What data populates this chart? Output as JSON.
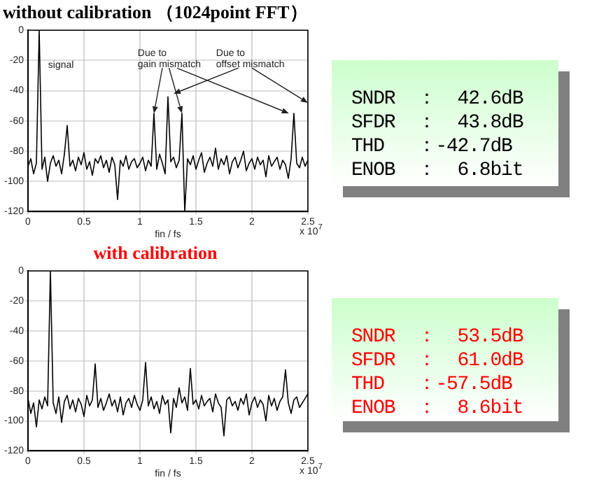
{
  "chart_data": [
    {
      "type": "line",
      "title": "without calibration （1024point FFT）",
      "xlabel": "fin / fs",
      "xlim": [
        0,
        2.5
      ],
      "xticks": [
        0,
        0.5,
        1,
        1.5,
        2,
        2.5
      ],
      "ylim": [
        -120,
        0
      ],
      "yticks": [
        -120,
        -100,
        -80,
        -60,
        -40,
        -20,
        0
      ],
      "grid": true,
      "x": [
        0,
        0.025,
        0.05,
        0.075,
        0.1,
        0.125,
        0.15,
        0.175,
        0.2,
        0.225,
        0.25,
        0.275,
        0.3,
        0.325,
        0.35,
        0.375,
        0.4,
        0.425,
        0.45,
        0.475,
        0.5,
        0.525,
        0.55,
        0.575,
        0.6,
        0.625,
        0.65,
        0.675,
        0.7,
        0.725,
        0.75,
        0.775,
        0.8,
        0.825,
        0.85,
        0.875,
        0.9,
        0.925,
        0.95,
        0.975,
        1,
        1.025,
        1.05,
        1.075,
        1.1,
        1.125,
        1.15,
        1.175,
        1.2,
        1.225,
        1.25,
        1.275,
        1.3,
        1.325,
        1.35,
        1.375,
        1.4,
        1.425,
        1.45,
        1.475,
        1.5,
        1.525,
        1.55,
        1.575,
        1.6,
        1.625,
        1.65,
        1.675,
        1.7,
        1.725,
        1.75,
        1.775,
        1.8,
        1.825,
        1.85,
        1.875,
        1.9,
        1.925,
        1.95,
        1.975,
        2,
        2.025,
        2.05,
        2.075,
        2.1,
        2.125,
        2.15,
        2.175,
        2.2,
        2.225,
        2.25,
        2.275,
        2.3,
        2.325,
        2.35,
        2.375,
        2.4,
        2.425,
        2.45,
        2.475,
        2.5
      ],
      "series": [
        {
          "color": "#000000",
          "values": [
            -90,
            -85,
            -95,
            -88,
            0,
            -92,
            -84,
            -100,
            -88,
            -83,
            -90,
            -86,
            -95,
            -82,
            -63,
            -90,
            -86,
            -93,
            -84,
            -89,
            -81,
            -92,
            -87,
            -96,
            -85,
            -88,
            -83,
            -91,
            -86,
            -94,
            -84,
            -89,
            -112,
            -86,
            -90,
            -83,
            -92,
            -87,
            -85,
            -91,
            -88,
            -84,
            -93,
            -86,
            -90,
            -55,
            -92,
            -82,
            -88,
            -95,
            -44,
            -87,
            -84,
            -91,
            -86,
            -55,
            -120,
            -85,
            -89,
            -83,
            -92,
            -86,
            -81,
            -94,
            -88,
            -84,
            -90,
            -78,
            -92,
            -85,
            -89,
            -83,
            -95,
            -87,
            -84,
            -91,
            -86,
            -80,
            -93,
            -88,
            -85,
            -92,
            -84,
            -89,
            -86,
            -97,
            -83,
            -90,
            -87,
            -84,
            -92,
            -86,
            -89,
            -98,
            -85,
            -55,
            -88,
            -91,
            -84,
            -90,
            -86
          ]
        }
      ],
      "annotations": [
        "signal",
        "Due to\ngain mismatch",
        "Due to\noffset mismatch",
        "x 10$^{7}$"
      ]
    },
    {
      "type": "other",
      "color": "#000000",
      "annotations": [
        "SNDR  ：  42.6dB",
        "SFDR  ：  43.8dB",
        "THD   ：-42.7dB",
        "ENOB  ：  6.8bit"
      ]
    },
    {
      "type": "line",
      "title": "with calibration",
      "xlabel": "fin / fs",
      "xlim": [
        0,
        2.5
      ],
      "xticks": [
        0,
        0.5,
        1,
        1.5,
        2,
        2.5
      ],
      "ylim": [
        -120,
        0
      ],
      "yticks": [
        -120,
        -100,
        -80,
        -60,
        -40,
        -20,
        0
      ],
      "grid": true,
      "x": [
        0,
        0.025,
        0.05,
        0.075,
        0.1,
        0.125,
        0.15,
        0.175,
        0.2,
        0.225,
        0.25,
        0.275,
        0.3,
        0.325,
        0.35,
        0.375,
        0.4,
        0.425,
        0.45,
        0.475,
        0.5,
        0.525,
        0.55,
        0.575,
        0.6,
        0.625,
        0.65,
        0.675,
        0.7,
        0.725,
        0.75,
        0.775,
        0.8,
        0.825,
        0.85,
        0.875,
        0.9,
        0.925,
        0.95,
        0.975,
        1,
        1.025,
        1.05,
        1.075,
        1.1,
        1.125,
        1.15,
        1.175,
        1.2,
        1.225,
        1.25,
        1.275,
        1.3,
        1.325,
        1.35,
        1.375,
        1.4,
        1.425,
        1.45,
        1.475,
        1.5,
        1.525,
        1.55,
        1.575,
        1.6,
        1.625,
        1.65,
        1.675,
        1.7,
        1.725,
        1.75,
        1.775,
        1.8,
        1.825,
        1.85,
        1.875,
        1.9,
        1.925,
        1.95,
        1.975,
        2,
        2.025,
        2.05,
        2.075,
        2.1,
        2.125,
        2.15,
        2.175,
        2.2,
        2.225,
        2.25,
        2.275,
        2.3,
        2.325,
        2.35,
        2.375,
        2.4,
        2.425,
        2.45,
        2.475,
        2.5
      ],
      "series": [
        {
          "color": "#000000",
          "values": [
            -85,
            -95,
            -88,
            -104,
            -86,
            -92,
            -84,
            -90,
            0,
            -88,
            -95,
            -84,
            -101,
            -87,
            -83,
            -92,
            -86,
            -94,
            -85,
            -89,
            -97,
            -83,
            -90,
            -86,
            -62,
            -91,
            -85,
            -93,
            -88,
            -82,
            -90,
            -86,
            -94,
            -84,
            -96,
            -88,
            -85,
            -91,
            -83,
            -89,
            -93,
            -86,
            -61,
            -90,
            -84,
            -92,
            -87,
            -95,
            -83,
            -89,
            -86,
            -108,
            -85,
            -91,
            -78,
            -88,
            -84,
            -93,
            -65,
            -89,
            -86,
            -92,
            -83,
            -90,
            -87,
            -85,
            -94,
            -82,
            -88,
            -91,
            -110,
            -86,
            -84,
            -90,
            -87,
            -93,
            -85,
            -89,
            -82,
            -96,
            -88,
            -84,
            -91,
            -86,
            -89,
            -100,
            -83,
            -90,
            -85,
            -93,
            -87,
            -84,
            -66,
            -88,
            -95,
            -86,
            -84,
            -91,
            -88,
            -85,
            -82
          ]
        }
      ],
      "annotations": [
        "x 10$^{7}$"
      ]
    },
    {
      "type": "other",
      "color": "#ff0000",
      "annotations": [
        "SNDR  ：  53.5dB",
        "SFDR  ：  61.0dB",
        "THD   ：-57.5dB",
        "ENOB  ：  8.6bit"
      ]
    }
  ]
}
